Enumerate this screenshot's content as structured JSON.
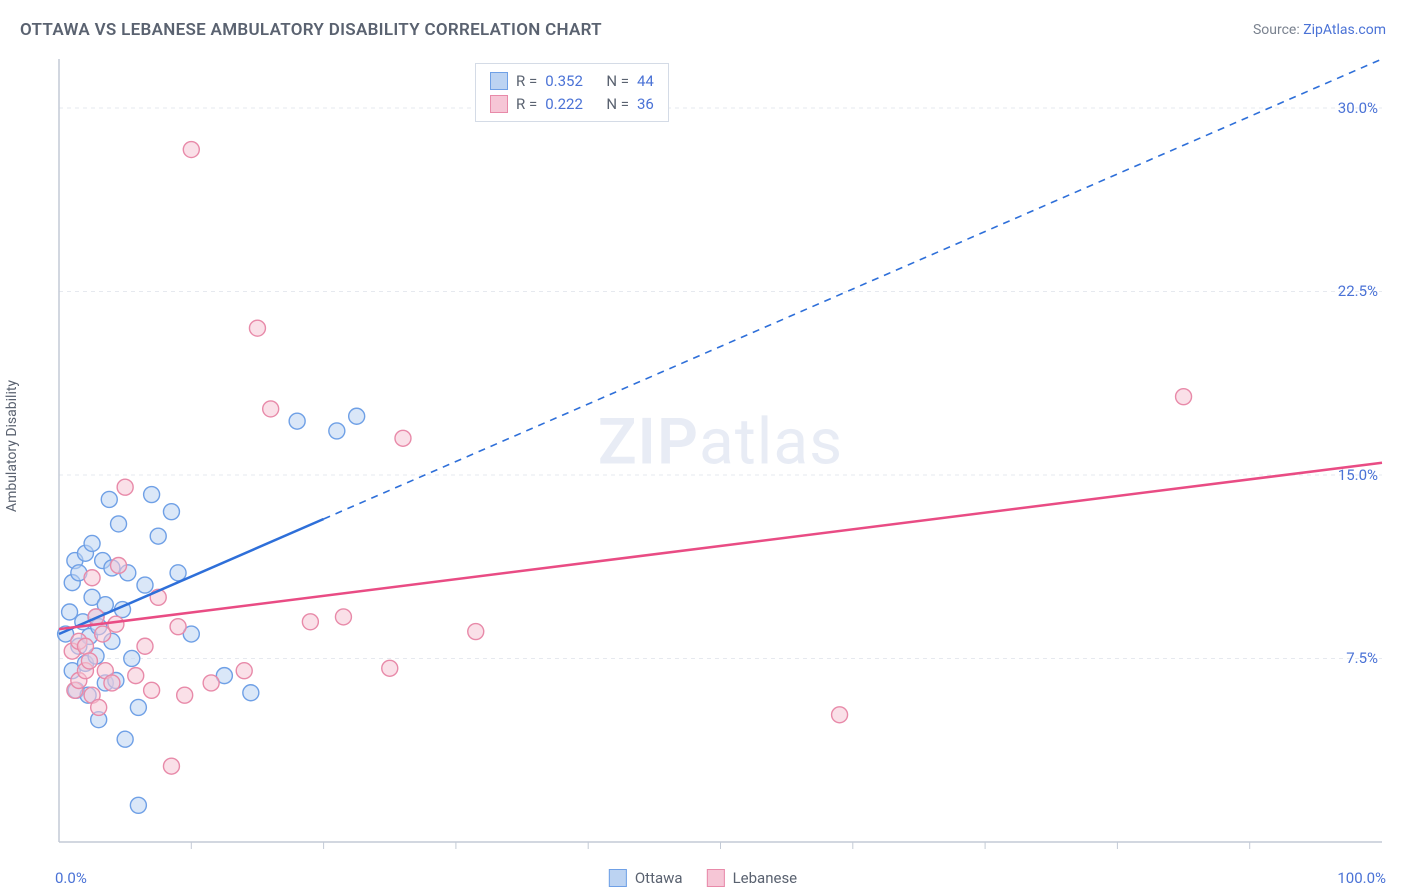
{
  "header": {
    "title": "OTTAWA VS LEBANESE AMBULATORY DISABILITY CORRELATION CHART",
    "source_prefix": "Source: ",
    "source_link": "ZipAtlas.com"
  },
  "axes": {
    "ylabel": "Ambulatory Disability",
    "xmin_label": "0.0%",
    "xmax_label": "100.0%",
    "y_ticks": [
      {
        "v": 7.5,
        "label": "7.5%"
      },
      {
        "v": 15.0,
        "label": "15.0%"
      },
      {
        "v": 22.5,
        "label": "22.5%"
      },
      {
        "v": 30.0,
        "label": "30.0%"
      }
    ],
    "x_minor_ticks": [
      10,
      20,
      30,
      40,
      50,
      60,
      70,
      80,
      90
    ],
    "x_domain": [
      0,
      100
    ],
    "y_domain": [
      0,
      32
    ]
  },
  "watermark": {
    "bold": "ZIP",
    "rest": "atlas"
  },
  "series": [
    {
      "name": "Ottawa",
      "color_fill": "#bcd3f2",
      "color_stroke": "#6fa0e6",
      "line_color": "#2e6fd9",
      "r_label": "R =",
      "r_value": "0.352",
      "n_label": "N =",
      "n_value": "44",
      "trend": {
        "x1": 0,
        "y1": 8.5,
        "x2": 100,
        "y2": 32,
        "solid_until_x": 20
      },
      "points": [
        [
          0.5,
          8.5
        ],
        [
          0.8,
          9.4
        ],
        [
          1.0,
          7.0
        ],
        [
          1.0,
          10.6
        ],
        [
          1.2,
          11.5
        ],
        [
          1.3,
          6.2
        ],
        [
          1.5,
          8.0
        ],
        [
          1.5,
          11.0
        ],
        [
          1.8,
          9.0
        ],
        [
          2.0,
          7.3
        ],
        [
          2.0,
          11.8
        ],
        [
          2.2,
          6.0
        ],
        [
          2.3,
          8.4
        ],
        [
          2.5,
          10.0
        ],
        [
          2.5,
          12.2
        ],
        [
          2.8,
          9.2
        ],
        [
          2.8,
          7.6
        ],
        [
          3.0,
          5.0
        ],
        [
          3.0,
          8.8
        ],
        [
          3.3,
          11.5
        ],
        [
          3.5,
          6.5
        ],
        [
          3.5,
          9.7
        ],
        [
          3.8,
          14.0
        ],
        [
          4.0,
          8.2
        ],
        [
          4.0,
          11.2
        ],
        [
          4.3,
          6.6
        ],
        [
          4.5,
          13.0
        ],
        [
          4.8,
          9.5
        ],
        [
          5.0,
          4.2
        ],
        [
          5.2,
          11.0
        ],
        [
          5.5,
          7.5
        ],
        [
          6.0,
          1.5
        ],
        [
          6.0,
          5.5
        ],
        [
          6.5,
          10.5
        ],
        [
          7.0,
          14.2
        ],
        [
          7.5,
          12.5
        ],
        [
          8.5,
          13.5
        ],
        [
          9.0,
          11.0
        ],
        [
          10.0,
          8.5
        ],
        [
          12.5,
          6.8
        ],
        [
          14.5,
          6.1
        ],
        [
          18.0,
          17.2
        ],
        [
          21.0,
          16.8
        ],
        [
          22.5,
          17.4
        ]
      ]
    },
    {
      "name": "Lebanese",
      "color_fill": "#f6c6d6",
      "color_stroke": "#e88aa9",
      "line_color": "#e94c84",
      "r_label": "R =",
      "r_value": "0.222",
      "n_label": "N =",
      "n_value": "36",
      "trend": {
        "x1": 0,
        "y1": 8.7,
        "x2": 100,
        "y2": 15.5,
        "solid_until_x": 100
      },
      "points": [
        [
          1.0,
          7.8
        ],
        [
          1.2,
          6.2
        ],
        [
          1.5,
          8.2
        ],
        [
          1.5,
          6.6
        ],
        [
          2.0,
          7.0
        ],
        [
          2.0,
          8.0
        ],
        [
          2.3,
          7.4
        ],
        [
          2.5,
          6.0
        ],
        [
          2.5,
          10.8
        ],
        [
          2.8,
          9.2
        ],
        [
          3.0,
          5.5
        ],
        [
          3.3,
          8.5
        ],
        [
          3.5,
          7.0
        ],
        [
          4.0,
          6.5
        ],
        [
          4.3,
          8.9
        ],
        [
          4.5,
          11.3
        ],
        [
          5.0,
          14.5
        ],
        [
          5.8,
          6.8
        ],
        [
          6.5,
          8.0
        ],
        [
          7.0,
          6.2
        ],
        [
          7.5,
          10.0
        ],
        [
          8.5,
          3.1
        ],
        [
          9.0,
          8.8
        ],
        [
          9.5,
          6.0
        ],
        [
          10.0,
          28.3
        ],
        [
          11.5,
          6.5
        ],
        [
          14.0,
          7.0
        ],
        [
          15.0,
          21.0
        ],
        [
          16.0,
          17.7
        ],
        [
          19.0,
          9.0
        ],
        [
          21.5,
          9.2
        ],
        [
          25.0,
          7.1
        ],
        [
          26.0,
          16.5
        ],
        [
          31.5,
          8.6
        ],
        [
          59.0,
          5.2
        ],
        [
          85.0,
          18.2
        ]
      ]
    }
  ],
  "style": {
    "marker_radius": 8,
    "marker_stroke_width": 1.4,
    "trend_line_width": 2.5,
    "trend_dash": "7 6",
    "grid_color": "#e6e9ef",
    "axis_color": "#c3cad6",
    "font_family": "system-ui",
    "title_fontsize": 17,
    "tick_fontsize": 15,
    "background": "#ffffff"
  }
}
